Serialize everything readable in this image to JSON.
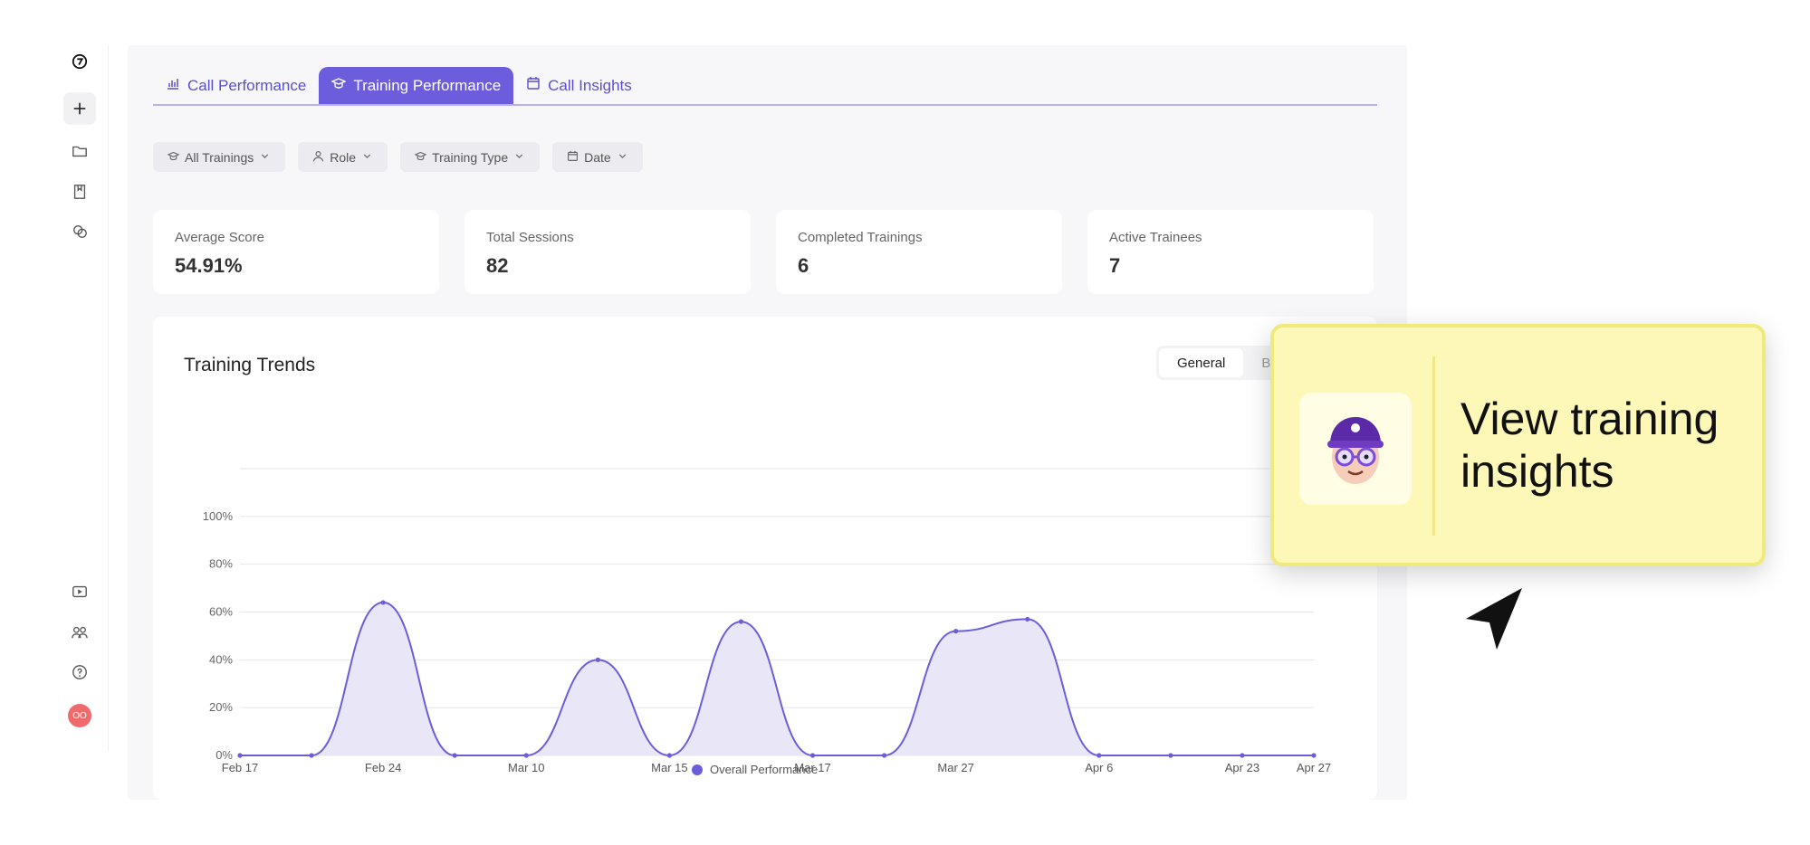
{
  "sidebar": {
    "icons": [
      "logo-icon",
      "plus-icon",
      "folder-icon",
      "book-icon",
      "chat-icon",
      "video-icon",
      "team-icon",
      "help-icon"
    ],
    "avatar_initials": "OO"
  },
  "tabs": [
    {
      "label": "Call Performance",
      "icon": "bar-chart-icon",
      "active": false
    },
    {
      "label": "Training Performance",
      "icon": "graduation-cap-icon",
      "active": true
    },
    {
      "label": "Call Insights",
      "icon": "calendar-icon",
      "active": false
    }
  ],
  "filters": [
    {
      "label": "All Trainings",
      "icon": "graduation-cap-icon"
    },
    {
      "label": "Role",
      "icon": "user-icon"
    },
    {
      "label": "Training Type",
      "icon": "graduation-cap-icon"
    },
    {
      "label": "Date",
      "icon": "calendar-icon"
    }
  ],
  "stats": [
    {
      "label": "Average Score",
      "value": "54.91%"
    },
    {
      "label": "Total Sessions",
      "value": "82"
    },
    {
      "label": "Completed Trainings",
      "value": "6"
    },
    {
      "label": "Active Trainees",
      "value": "7"
    }
  ],
  "chart_section": {
    "title": "Training Trends",
    "toggle": {
      "general": "General",
      "breakdown": "Bre"
    }
  },
  "chart_data": {
    "type": "area",
    "x": [
      "Feb 17",
      "",
      "Feb 24",
      "",
      "Mar 10",
      "",
      "Mar 15",
      "",
      "Mar 17",
      "",
      "Mar 27",
      "",
      "Apr 6",
      "",
      "Apr 23",
      "Apr 27"
    ],
    "x_tick_labels": [
      "Feb 17",
      "Feb 24",
      "Mar 10",
      "Mar 15",
      "Mar 17",
      "Mar 27",
      "Apr 6",
      "Apr 23",
      "Apr 27"
    ],
    "series": [
      {
        "name": "Overall Performance",
        "values": [
          0,
          0,
          64,
          0,
          0,
          40,
          0,
          56,
          0,
          0,
          52,
          57,
          0,
          0,
          0,
          0
        ]
      }
    ],
    "y_ticks": [
      "0%",
      "20%",
      "40%",
      "60%",
      "80%",
      "100%"
    ],
    "ylim": [
      0,
      120
    ],
    "grid": true,
    "legend": "bottom",
    "color": "#6b5ddb",
    "fill": "#e9e6f7"
  },
  "tooltip": {
    "text": "View training insights"
  },
  "colors": {
    "accent": "#6b5ddb",
    "bubble": "#fdf8b8"
  }
}
